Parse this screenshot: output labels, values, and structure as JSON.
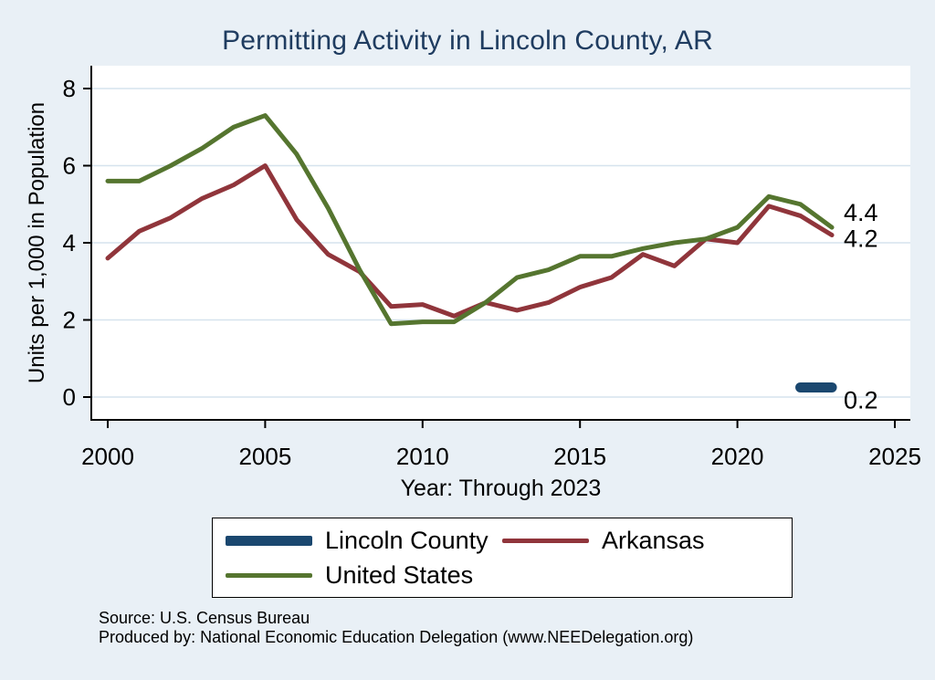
{
  "colors": {
    "page_bg": "#e9f0f6",
    "plot_bg": "#ffffff",
    "grid": "#d6e3ee",
    "axis": "#000000",
    "title": "#1f3c60",
    "text": "#000000"
  },
  "chart_data": {
    "type": "line",
    "title": "Permitting Activity in Lincoln County, AR",
    "xlabel": "Year: Through 2023",
    "ylabel": "Units per 1,000 in Population",
    "xlim": [
      2000,
      2025
    ],
    "ylim": [
      0,
      8
    ],
    "xticks": [
      2000,
      2005,
      2010,
      2015,
      2020,
      2025
    ],
    "yticks": [
      0,
      2,
      4,
      6,
      8
    ],
    "grid": "horizontal",
    "legend_position": "bottom",
    "series": [
      {
        "name": "Lincoln County",
        "color": "#1a476f",
        "stroke_width": 11,
        "x": [
          2022,
          2023
        ],
        "values": [
          0.25,
          0.25
        ],
        "end_label": "0.2",
        "end_label_dy": 14
      },
      {
        "name": "Arkansas",
        "color": "#90353b",
        "stroke_width": 5,
        "x": [
          2000,
          2001,
          2002,
          2003,
          2004,
          2005,
          2006,
          2007,
          2008,
          2009,
          2010,
          2011,
          2012,
          2013,
          2014,
          2015,
          2016,
          2017,
          2018,
          2019,
          2020,
          2021,
          2022,
          2023
        ],
        "values": [
          3.6,
          4.3,
          4.65,
          5.15,
          5.5,
          6.0,
          4.6,
          3.7,
          3.25,
          2.35,
          2.4,
          2.1,
          2.45,
          2.25,
          2.45,
          2.85,
          3.1,
          3.7,
          3.4,
          4.1,
          4.0,
          4.95,
          4.7,
          4.2
        ],
        "end_label": "4.2",
        "end_label_dy": 4
      },
      {
        "name": "United States",
        "color": "#55752f",
        "stroke_width": 5,
        "x": [
          2000,
          2001,
          2002,
          2003,
          2004,
          2005,
          2006,
          2007,
          2008,
          2009,
          2010,
          2011,
          2012,
          2013,
          2014,
          2015,
          2016,
          2017,
          2018,
          2019,
          2020,
          2021,
          2022,
          2023
        ],
        "values": [
          5.6,
          5.6,
          6.0,
          6.45,
          7.0,
          7.3,
          6.3,
          4.9,
          3.3,
          1.9,
          1.95,
          1.95,
          2.45,
          3.1,
          3.3,
          3.65,
          3.65,
          3.85,
          4.0,
          4.1,
          4.4,
          5.2,
          5.0,
          4.4
        ],
        "end_label": "4.4",
        "end_label_dy": -16
      }
    ]
  },
  "footer": {
    "source": "Source: U.S. Census Bureau",
    "produced_by": "Produced by: National Economic Education Delegation (www.NEEDelegation.org)"
  }
}
